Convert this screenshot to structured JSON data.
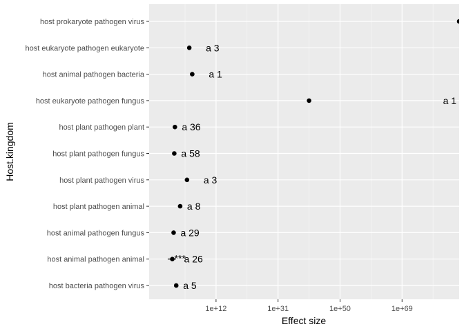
{
  "chart_data": {
    "type": "scatter",
    "orientation": "horizontal",
    "x_scale": "log10",
    "xlabel": "Effect size",
    "ylabel": "Host.kingdom",
    "x_ticks": [
      {
        "value": 12,
        "label": "1e+12"
      },
      {
        "value": 31,
        "label": "1e+31"
      },
      {
        "value": 50,
        "label": "1e+50"
      },
      {
        "value": 69,
        "label": "1e+69"
      }
    ],
    "x_log10_range": [
      -8.5,
      86.5
    ],
    "grid": true,
    "legend": "none",
    "colors": {
      "panel": "#ebebeb",
      "grid": "#ffffff",
      "point": "#000000"
    },
    "categories": [
      "host prokaryote pathogen virus",
      "host eukaryote pathogen eukaryote",
      "host animal pathogen bacteria",
      "host eukaryote pathogen fungus",
      "host plant pathogen plant",
      "host plant pathogen fungus",
      "host plant pathogen virus",
      "host plant pathogen animal",
      "host animal pathogen fungus",
      "host animal pathogen animal",
      "host bacteria pathogen virus"
    ],
    "points": [
      {
        "category": "host prokaryote pathogen virus",
        "x_log10": 86.5,
        "label": ""
      },
      {
        "category": "host eukaryote pathogen eukaryote",
        "x_log10": 3.8,
        "label": "a 3"
      },
      {
        "category": "host animal pathogen bacteria",
        "x_log10": 4.7,
        "label": "a 1"
      },
      {
        "category": "host eukaryote pathogen fungus",
        "x_log10": 40.5,
        "label": "a 1"
      },
      {
        "category": "host plant pathogen plant",
        "x_log10": -0.6,
        "label": "a 36"
      },
      {
        "category": "host plant pathogen fungus",
        "x_log10": -0.8,
        "label": "a 58"
      },
      {
        "category": "host plant pathogen virus",
        "x_log10": 3.1,
        "label": "a 3"
      },
      {
        "category": "host plant pathogen animal",
        "x_log10": 1.0,
        "label": "a 8"
      },
      {
        "category": "host animal pathogen fungus",
        "x_log10": -1.0,
        "label": "a 29"
      },
      {
        "category": "host animal pathogen animal",
        "x_log10": -1.4,
        "xerr_low": -2.8,
        "xerr_high": -0.3,
        "significance": "***",
        "label": "a 26"
      },
      {
        "category": "host bacteria pathogen virus",
        "x_log10": -0.2,
        "label": "a 5"
      }
    ]
  }
}
